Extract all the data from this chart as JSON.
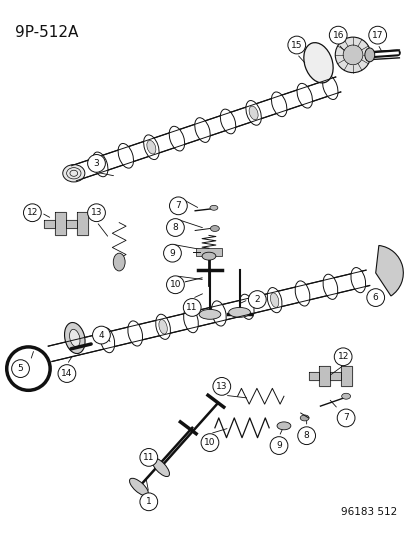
{
  "title": "9P-512A",
  "footer": "96183 512",
  "bg_color": "#ffffff",
  "fg_color": "#111111",
  "title_fontsize": 11,
  "footer_fontsize": 7.5,
  "figsize": [
    4.14,
    5.33
  ],
  "dpi": 100
}
